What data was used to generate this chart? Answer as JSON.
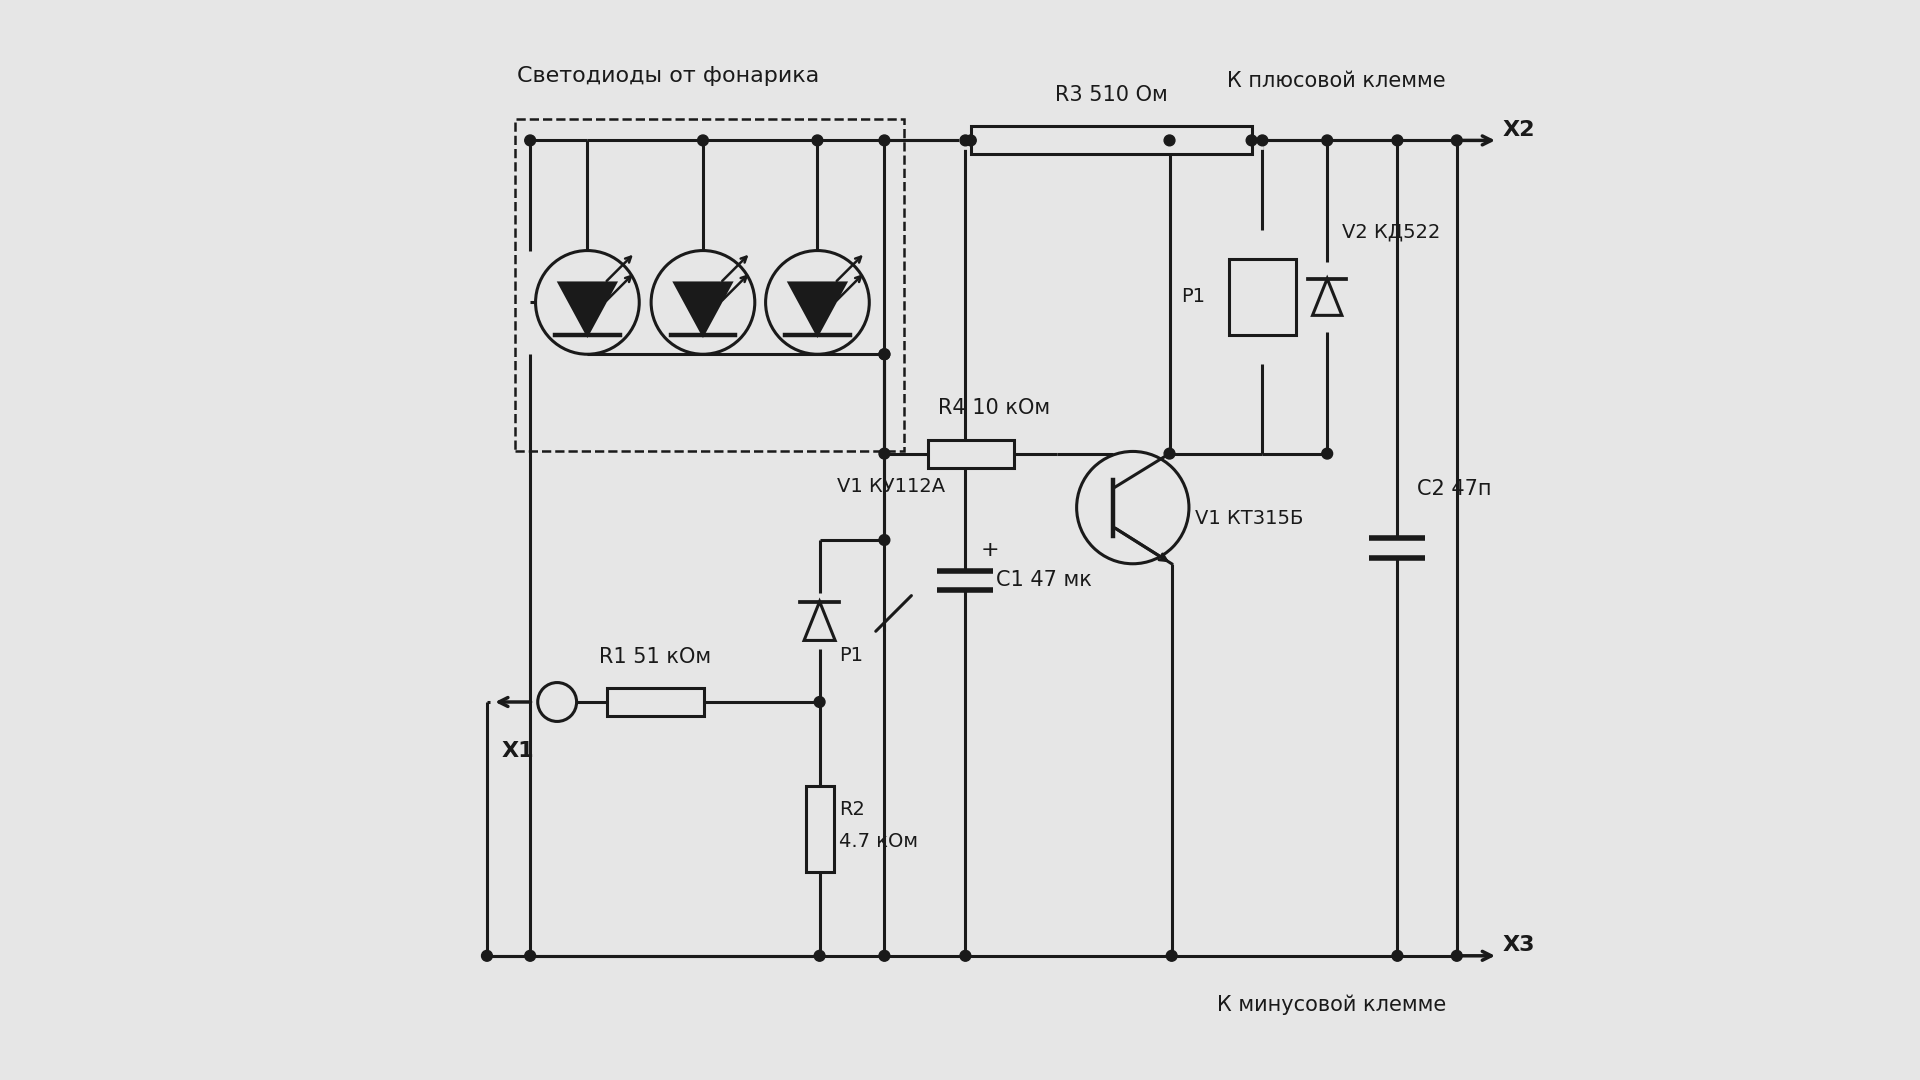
{
  "bg_color": "#e6e6e6",
  "line_color": "#1a1a1a",
  "lw": 2.2,
  "labels": {
    "svetodiody": "Светодиоды от фонарика",
    "R3": "R3 510 Ом",
    "R4": "R4 10 кОм",
    "R1": "R1 51 кОм",
    "R2": "R2",
    "R2b": "4.7 кОм",
    "C1": "C1 47 мк",
    "C2": "C2 47п",
    "V1_ku": "V1 КУ112А",
    "V1_kt": "V1 КТ315Б",
    "V2": "V2 КД522",
    "P1": "P1",
    "X1": "Х1",
    "X2_top": "К плюсовой клемме",
    "X2": "Х2",
    "X3_bot": "К минусовой клемме",
    "X3": "Х3"
  }
}
